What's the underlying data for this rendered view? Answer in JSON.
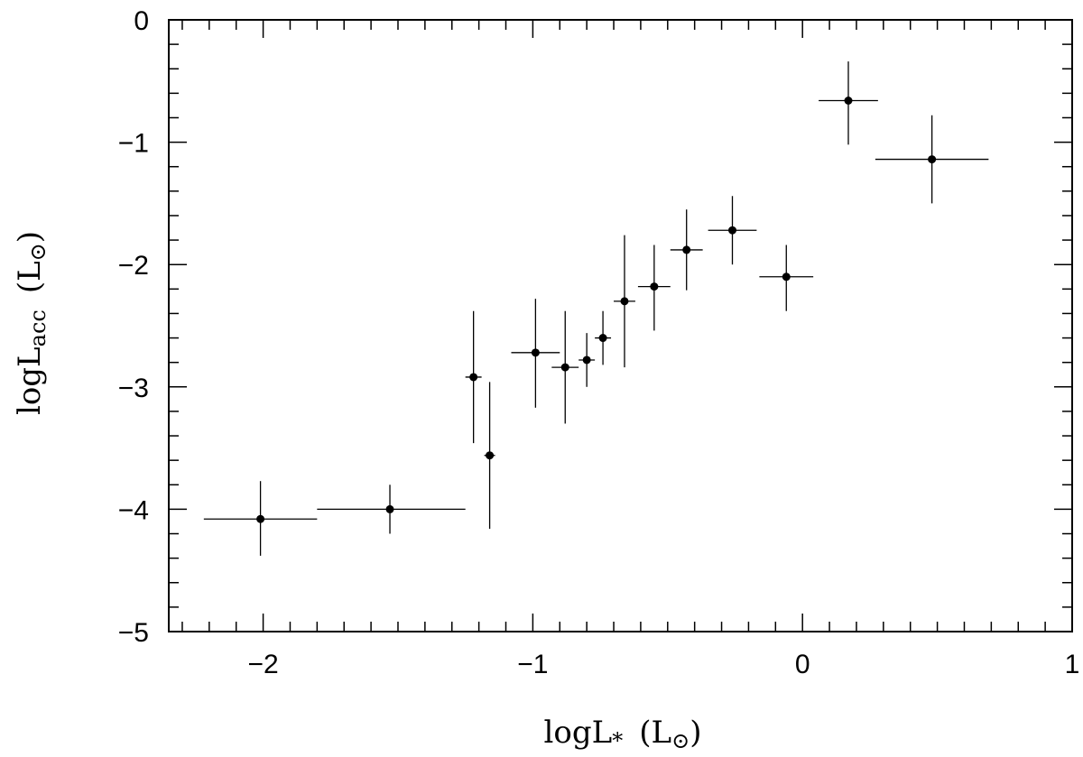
{
  "chart_data": {
    "type": "scatter",
    "title": "",
    "xlabel": {
      "main": "logL",
      "sub": "*",
      "unit": "(L",
      "unit_sub": "⊙",
      "close": ")"
    },
    "ylabel": {
      "main": "logL",
      "sub": "acc",
      "unit": "(L",
      "unit_sub": "⊙",
      "close": ")"
    },
    "xlim": [
      -2.35,
      1.0
    ],
    "ylim": [
      -5,
      0
    ],
    "x_major_ticks": [
      -2,
      -1,
      0,
      1
    ],
    "x_tick_labels": [
      "−2",
      "−1",
      "0",
      "1"
    ],
    "y_major_ticks": [
      0,
      -1,
      -2,
      -3,
      -4,
      -5
    ],
    "y_tick_labels": [
      "0",
      "−1",
      "−2",
      "−3",
      "−4",
      "−5"
    ],
    "x_minor_step": 0.1,
    "y_minor_step": 0.2,
    "grid": false,
    "legend": "none",
    "points": [
      {
        "x": -2.01,
        "y": -4.08,
        "xerr": [
          0.21,
          0.21
        ],
        "yerr": [
          0.3,
          0.31
        ]
      },
      {
        "x": -1.53,
        "y": -4.0,
        "xerr": [
          0.27,
          0.28
        ],
        "yerr": [
          0.2,
          0.2
        ]
      },
      {
        "x": -1.22,
        "y": -2.92,
        "xerr": [
          0.03,
          0.03
        ],
        "yerr": [
          0.54,
          0.54
        ]
      },
      {
        "x": -1.16,
        "y": -3.56,
        "xerr": [
          0.02,
          0.02
        ],
        "yerr": [
          0.6,
          0.6
        ]
      },
      {
        "x": -0.99,
        "y": -2.72,
        "xerr": [
          0.09,
          0.09
        ],
        "yerr": [
          0.45,
          0.44
        ]
      },
      {
        "x": -0.88,
        "y": -2.84,
        "xerr": [
          0.05,
          0.05
        ],
        "yerr": [
          0.46,
          0.46
        ]
      },
      {
        "x": -0.8,
        "y": -2.78,
        "xerr": [
          0.03,
          0.03
        ],
        "yerr": [
          0.22,
          0.22
        ]
      },
      {
        "x": -0.74,
        "y": -2.6,
        "xerr": [
          0.03,
          0.03
        ],
        "yerr": [
          0.22,
          0.22
        ]
      },
      {
        "x": -0.66,
        "y": -2.3,
        "xerr": [
          0.04,
          0.04
        ],
        "yerr": [
          0.54,
          0.54
        ]
      },
      {
        "x": -0.55,
        "y": -2.18,
        "xerr": [
          0.06,
          0.06
        ],
        "yerr": [
          0.36,
          0.34
        ]
      },
      {
        "x": -0.43,
        "y": -1.88,
        "xerr": [
          0.06,
          0.06
        ],
        "yerr": [
          0.33,
          0.33
        ]
      },
      {
        "x": -0.26,
        "y": -1.72,
        "xerr": [
          0.09,
          0.09
        ],
        "yerr": [
          0.28,
          0.28
        ]
      },
      {
        "x": -0.06,
        "y": -2.1,
        "xerr": [
          0.1,
          0.1
        ],
        "yerr": [
          0.28,
          0.26
        ]
      },
      {
        "x": 0.17,
        "y": -0.66,
        "xerr": [
          0.11,
          0.11
        ],
        "yerr": [
          0.36,
          0.32
        ]
      },
      {
        "x": 0.48,
        "y": -1.14,
        "xerr": [
          0.21,
          0.21
        ],
        "yerr": [
          0.36,
          0.36
        ]
      }
    ],
    "colors": {
      "marker": "#000000",
      "errorbar": "#000000",
      "frame": "#000000"
    }
  }
}
